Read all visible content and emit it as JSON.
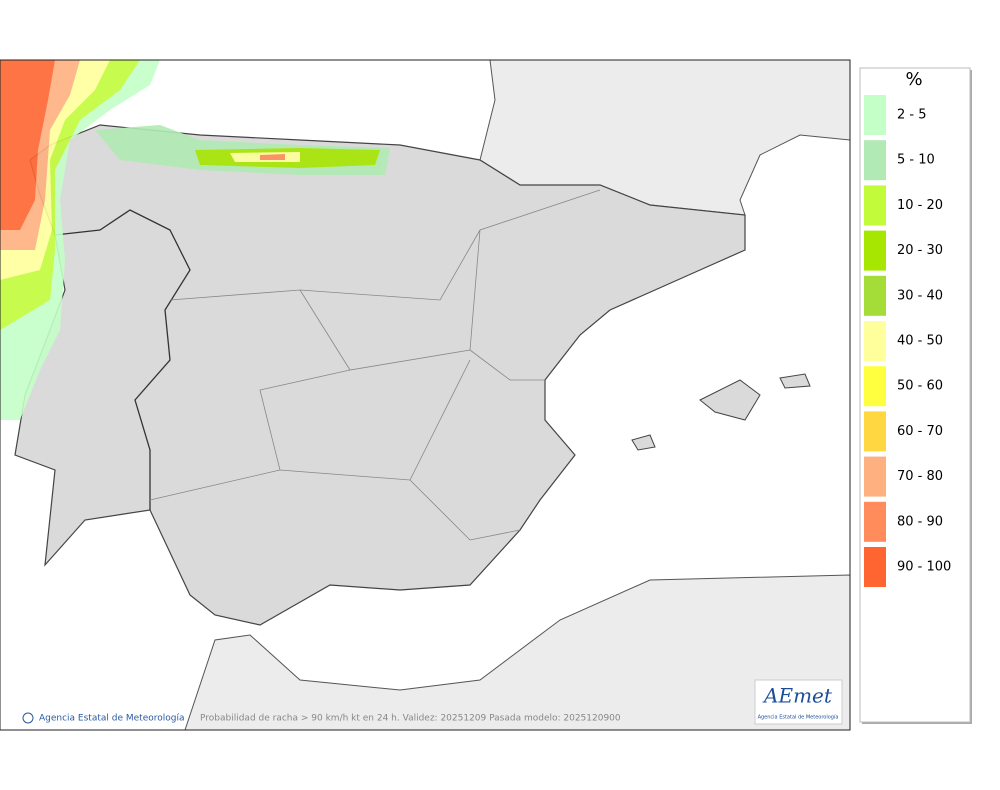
{
  "legend": {
    "title": "%",
    "items": [
      {
        "label": "2 - 5",
        "color": "#c4ffc8"
      },
      {
        "label": "5 - 10",
        "color": "#b1eab4"
      },
      {
        "label": "10 - 20",
        "color": "#c2fb3a"
      },
      {
        "label": "20 - 30",
        "color": "#a6e600"
      },
      {
        "label": "30 - 40",
        "color": "#a4dc38"
      },
      {
        "label": "40 - 50",
        "color": "#ffff9c"
      },
      {
        "label": "50 - 60",
        "color": "#ffff40"
      },
      {
        "label": "60 - 70",
        "color": "#ffd740"
      },
      {
        "label": "70 - 80",
        "color": "#ffb080"
      },
      {
        "label": "80 - 90",
        "color": "#ff8c5a"
      },
      {
        "label": "90 - 100",
        "color": "#ff6530"
      }
    ]
  },
  "footer": {
    "copyright": "Agencia Estatal de Meteorología",
    "caption": "Probabilidad de racha > 90 km/h kt en 24 h. Validez: 20251209 Pasada modelo: 2025120900"
  },
  "logo": {
    "name": "AEmet",
    "subtitle": "Agencia Estatal de Meteorología"
  }
}
